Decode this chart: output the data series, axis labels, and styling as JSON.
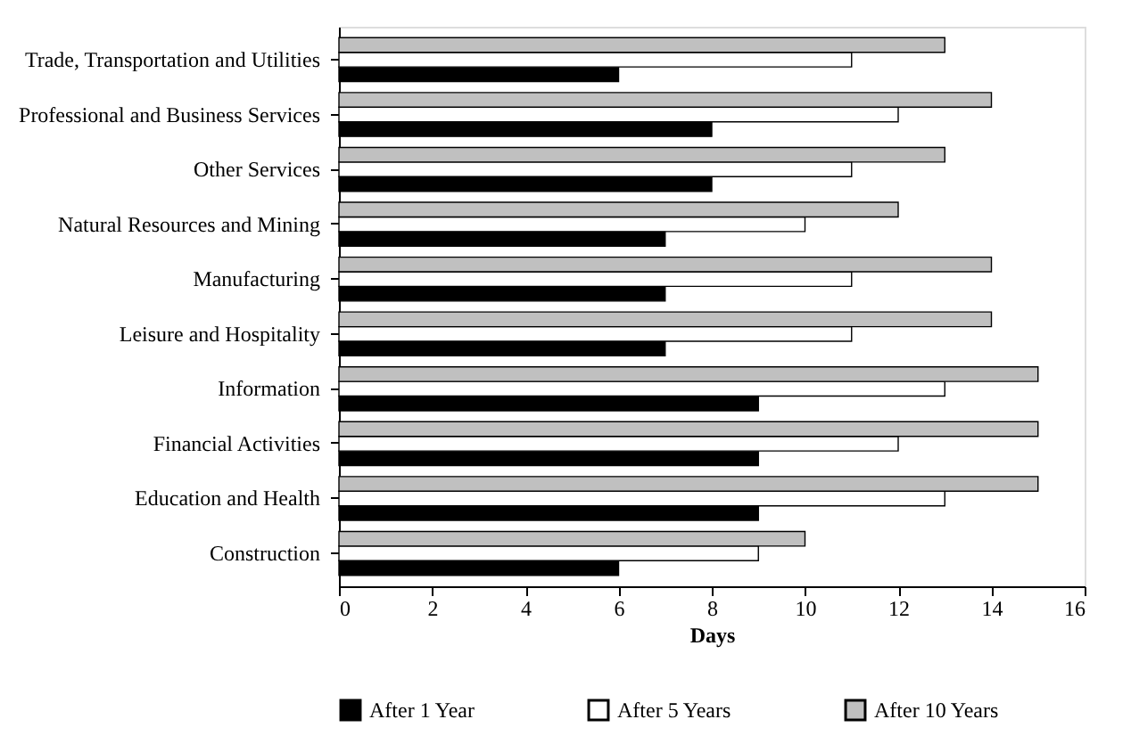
{
  "chart_data": {
    "type": "bar",
    "orientation": "horizontal",
    "xlabel": "Days",
    "categories": [
      "Trade, Transportation and Utilities",
      "Professional and Business Services",
      "Other Services",
      "Natural Resources and Mining",
      "Manufacturing",
      "Leisure and Hospitality",
      "Information",
      "Financial Activities",
      "Education and Health",
      "Construction"
    ],
    "series": [
      {
        "name": "After 1 Year",
        "color": "#000000",
        "values": [
          6,
          8,
          8,
          7,
          7,
          7,
          9,
          9,
          9,
          6
        ]
      },
      {
        "name": "After 5 Years",
        "color": "#ffffff",
        "values": [
          11,
          12,
          11,
          10,
          11,
          11,
          13,
          12,
          13,
          9
        ]
      },
      {
        "name": "After 10 Years",
        "color": "#c0c0c0",
        "values": [
          13,
          14,
          13,
          12,
          14,
          14,
          15,
          15,
          15,
          10
        ]
      }
    ],
    "xlim": [
      0,
      16
    ],
    "xticks": [
      0,
      2,
      4,
      6,
      8,
      10,
      12,
      14,
      16
    ],
    "grid": false,
    "legend": "bottom"
  }
}
